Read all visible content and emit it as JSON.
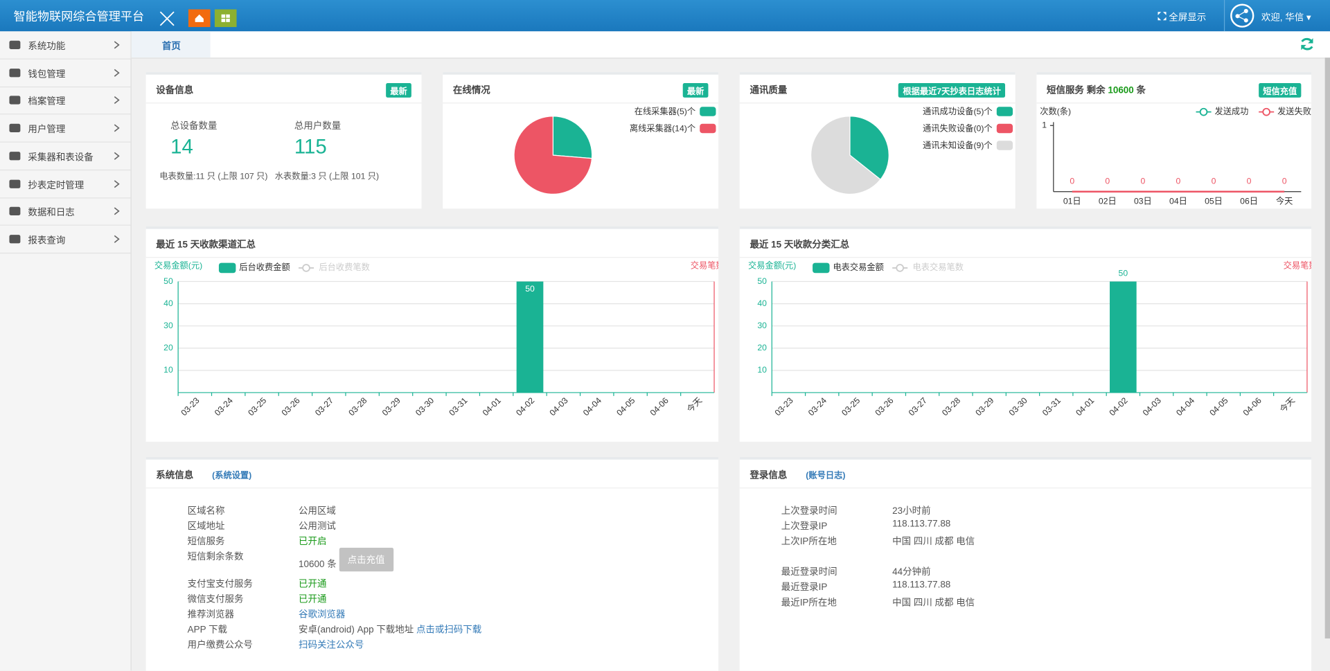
{
  "header": {
    "title": "智能物联网综合管理平台",
    "fullscreen": "全屏显示",
    "user": "欢迎, 华信"
  },
  "sidebar": [
    "系统功能",
    "钱包管理",
    "档案管理",
    "用户管理",
    "采集器和表设备",
    "抄表定时管理",
    "数据和日志",
    "报表查询"
  ],
  "tabs": [
    "首页"
  ],
  "device_info": {
    "title": "设备信息",
    "badge": "最新",
    "total_devices_label": "总设备数量",
    "total_devices": 14,
    "total_users_label": "总用户数量",
    "total_users": 115,
    "electric": "电表数量:11 只 (上限 107 只)",
    "water": "水表数量:3 只 (上限 101 只)"
  },
  "online": {
    "title": "在线情况",
    "badge": "最新",
    "chart": {
      "type": "pie",
      "categories": [
        "在线采集器(5)个",
        "离线采集器(14)个"
      ],
      "values": [
        5,
        14
      ],
      "colors": [
        "#1ab394",
        "#ed5565"
      ]
    }
  },
  "comm_quality": {
    "title": "通讯质量",
    "badge": "根据最近7天抄表日志统计",
    "chart": {
      "type": "pie",
      "categories": [
        "通讯成功设备(5)个",
        "通讯失败设备(0)个",
        "通讯未知设备(9)个"
      ],
      "values": [
        5,
        0,
        9
      ],
      "colors": [
        "#1ab394",
        "#ed5565",
        "#dcdcdc"
      ]
    }
  },
  "sms": {
    "title": "短信服务 剩余",
    "remaining": 10600,
    "unit": "条",
    "badge": "短信充值",
    "chart": {
      "type": "line",
      "y_label": "次数(条)",
      "categories": [
        "01日",
        "02日",
        "03日",
        "04日",
        "05日",
        "06日",
        "今天"
      ],
      "series": [
        {
          "name": "发送成功",
          "color": "#1ab394",
          "values": [
            0,
            0,
            0,
            0,
            0,
            0,
            0
          ]
        },
        {
          "name": "发送失败",
          "color": "#ed5565",
          "values": [
            0,
            0,
            0,
            0,
            0,
            0,
            0
          ],
          "show_labels": true
        }
      ],
      "ylim": [
        0,
        1
      ],
      "yticks": [
        1
      ]
    }
  },
  "channel_summary": {
    "title": "最近 15 天收款渠道汇总",
    "chart": {
      "type": "bar",
      "y_label": "交易金额(元)",
      "y2_label": "交易笔数",
      "categories": [
        "03-23",
        "03-24",
        "03-25",
        "03-26",
        "03-27",
        "03-28",
        "03-29",
        "03-30",
        "03-31",
        "04-01",
        "04-02",
        "04-03",
        "04-04",
        "04-05",
        "04-06",
        "今天"
      ],
      "series": [
        {
          "name": "后台收费金额",
          "color": "#1ab394",
          "values": [
            0,
            0,
            0,
            0,
            0,
            0,
            0,
            0,
            0,
            0,
            50,
            0,
            0,
            0,
            0,
            0
          ],
          "label_position": "inside"
        },
        {
          "name": "后台收费笔数",
          "color": "#cccccc",
          "axis": "y2",
          "visible": false
        }
      ],
      "ylim": [
        0,
        50
      ],
      "yticks": [
        10,
        20,
        30,
        40,
        50
      ]
    }
  },
  "category_summary": {
    "title": "最近 15 天收款分类汇总",
    "chart": {
      "type": "bar",
      "y_label": "交易金额(元)",
      "y2_label": "交易笔数",
      "categories": [
        "03-23",
        "03-24",
        "03-25",
        "03-26",
        "03-27",
        "03-28",
        "03-29",
        "03-30",
        "03-31",
        "04-01",
        "04-02",
        "04-03",
        "04-04",
        "04-05",
        "04-06",
        "今天"
      ],
      "series": [
        {
          "name": "电表交易金额",
          "color": "#1ab394",
          "values": [
            0,
            0,
            0,
            0,
            0,
            0,
            0,
            0,
            0,
            0,
            50,
            0,
            0,
            0,
            0,
            0
          ],
          "label_position": "top"
        },
        {
          "name": "电表交易笔数",
          "color": "#cccccc",
          "axis": "y2",
          "visible": false
        }
      ],
      "ylim": [
        0,
        50
      ],
      "yticks": [
        10,
        20,
        30,
        40,
        50
      ]
    }
  },
  "system_info": {
    "title": "系统信息",
    "link": "(系统设置)",
    "rows": [
      {
        "label": "区域名称",
        "value": "公用区域"
      },
      {
        "label": "区域地址",
        "value": "公用测试"
      },
      {
        "label": "短信服务",
        "value": "已开启",
        "style": "green"
      },
      {
        "label": "短信剩余条数",
        "value": "10600 条",
        "button": "点击充值"
      },
      {
        "label": "支付宝支付服务",
        "value": "已开通",
        "style": "green"
      },
      {
        "label": "微信支付服务",
        "value": "已开通",
        "style": "green"
      },
      {
        "label": "推荐浏览器",
        "value": "谷歌浏览器",
        "style": "link"
      },
      {
        "label": "APP 下载",
        "value": "安卓(android) App 下载地址",
        "link": "点击或扫码下载"
      },
      {
        "label": "用户缴费公众号",
        "value": "扫码关注公众号",
        "style": "link"
      }
    ]
  },
  "login_info": {
    "title": "登录信息",
    "link": "(账号日志)",
    "groups": [
      [
        {
          "label": "上次登录时间",
          "value": "23小时前"
        },
        {
          "label": "上次登录IP",
          "value": "118.113.77.88"
        },
        {
          "label": "上次IP所在地",
          "value": "中国 四川 成都 电信"
        }
      ],
      [
        {
          "label": "最近登录时间",
          "value": "44分钟前"
        },
        {
          "label": "最近登录IP",
          "value": "118.113.77.88"
        },
        {
          "label": "最近IP所在地",
          "value": "中国 四川 成都 电信"
        }
      ]
    ]
  }
}
